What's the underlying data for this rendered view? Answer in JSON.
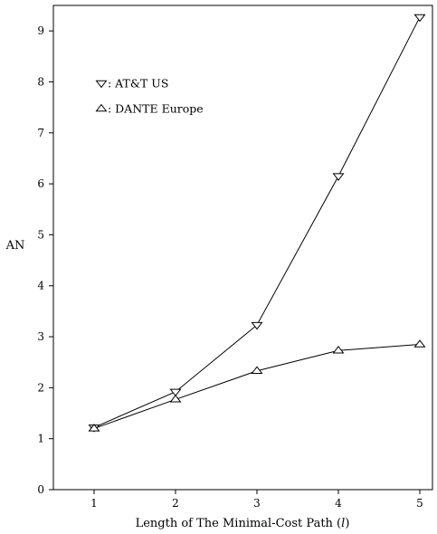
{
  "chart_data": {
    "type": "line",
    "xlabel": "Length of The Minimal-Cost Path (",
    "xlabel_var": "l",
    "xlabel_suffix": ")",
    "ylabel": "AN",
    "x": [
      1,
      2,
      3,
      4,
      5
    ],
    "xlim": [
      0.5,
      5.2
    ],
    "ylim": [
      0,
      9.5
    ],
    "xticks": [
      1,
      2,
      3,
      4,
      5
    ],
    "yticks": [
      0,
      1,
      2,
      3,
      4,
      5,
      6,
      7,
      8,
      9
    ],
    "grid": false,
    "legend_position": "top-left",
    "series": [
      {
        "name": "AT&T US",
        "legend_label": ": AT&T US",
        "marker": "triangle-down",
        "values": [
          1.22,
          1.92,
          3.23,
          6.15,
          9.27
        ]
      },
      {
        "name": "DANTE Europe",
        "legend_label": ": DANTE Europe",
        "marker": "triangle-up",
        "values": [
          1.2,
          1.77,
          2.33,
          2.73,
          2.85
        ]
      }
    ]
  }
}
